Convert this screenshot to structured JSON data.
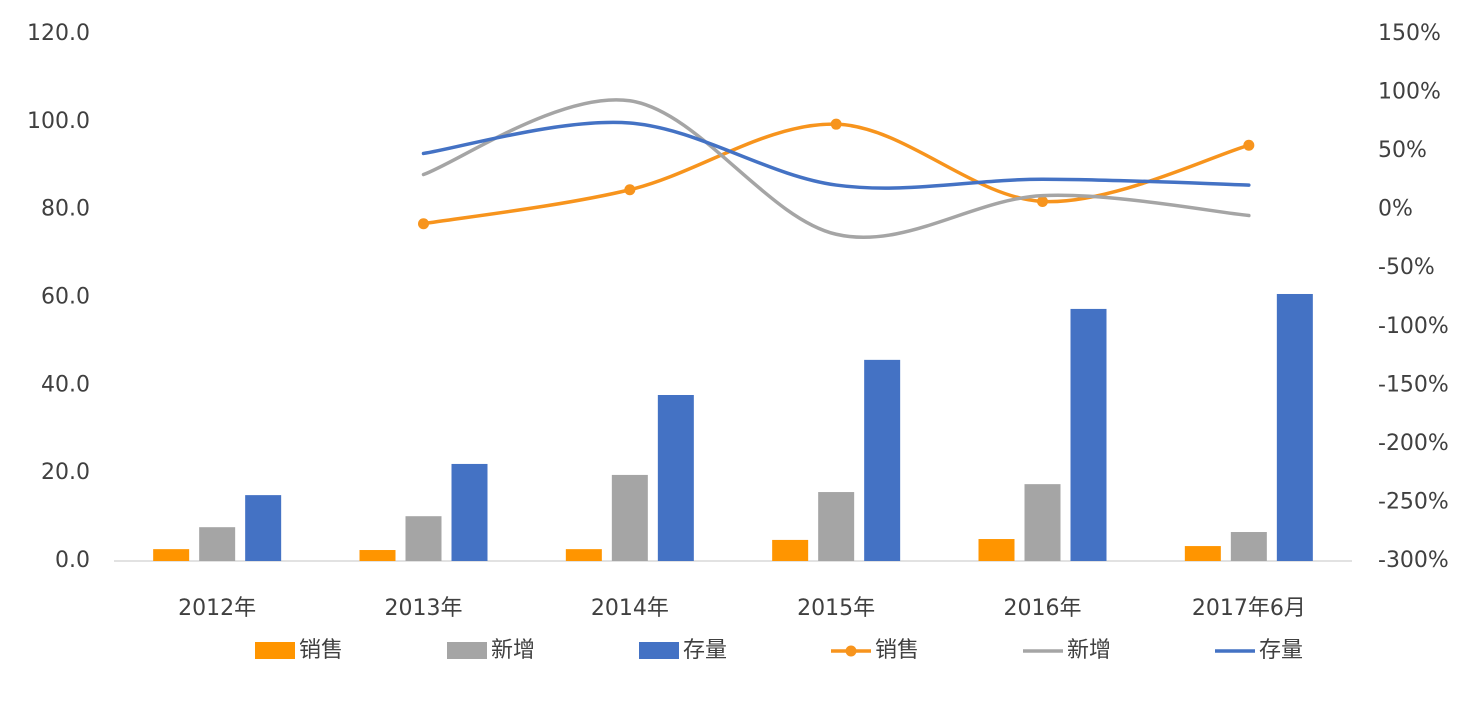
{
  "chart_data": {
    "type": "combo",
    "categories": [
      "2012年",
      "2013年",
      "2014年",
      "2015年",
      "2016年",
      "2017年6月"
    ],
    "series": [
      {
        "name": "销售",
        "type": "bar",
        "color": "#ff9500",
        "values": [
          2.7,
          2.5,
          2.7,
          4.8,
          5.0,
          3.4
        ]
      },
      {
        "name": "新增",
        "type": "bar",
        "color": "#a5a5a5",
        "values": [
          7.7,
          10.2,
          19.6,
          15.7,
          17.5,
          6.6
        ]
      },
      {
        "name": "存量",
        "type": "bar",
        "color": "#4472c4",
        "values": [
          15.0,
          22.1,
          37.8,
          45.8,
          57.4,
          60.8
        ]
      },
      {
        "name": "销售",
        "type": "line",
        "axis": "y2",
        "marker": true,
        "color": "#f7941d",
        "values": [
          null,
          -12,
          17,
          73,
          7,
          55
        ]
      },
      {
        "name": "新增",
        "type": "line",
        "axis": "y2",
        "marker": false,
        "color": "#a5a5a5",
        "values": [
          null,
          30,
          93,
          -21,
          12,
          -5
        ]
      },
      {
        "name": "存量",
        "type": "line",
        "axis": "y2",
        "marker": false,
        "color": "#4472c4",
        "values": [
          null,
          48,
          74,
          21,
          26,
          21
        ]
      }
    ],
    "ylim": [
      0,
      120
    ],
    "yticks": [
      {
        "value": 0,
        "label": "0.0"
      },
      {
        "value": 20,
        "label": "20.0"
      },
      {
        "value": 40,
        "label": "40.0"
      },
      {
        "value": 60,
        "label": "60.0"
      },
      {
        "value": 80,
        "label": "80.0"
      },
      {
        "value": 100,
        "label": "100.0"
      },
      {
        "value": 120,
        "label": "120.0"
      }
    ],
    "y2lim": [
      -300,
      150
    ],
    "y2ticks": [
      {
        "value": -300,
        "label": "-300%"
      },
      {
        "value": -250,
        "label": "-250%"
      },
      {
        "value": -200,
        "label": "-200%"
      },
      {
        "value": -150,
        "label": "-150%"
      },
      {
        "value": -100,
        "label": "-100%"
      },
      {
        "value": -50,
        "label": "-50%"
      },
      {
        "value": 0,
        "label": "0%"
      },
      {
        "value": 50,
        "label": "50%"
      },
      {
        "value": 100,
        "label": "100%"
      },
      {
        "value": 150,
        "label": "150%"
      }
    ],
    "legend": "bottom"
  }
}
